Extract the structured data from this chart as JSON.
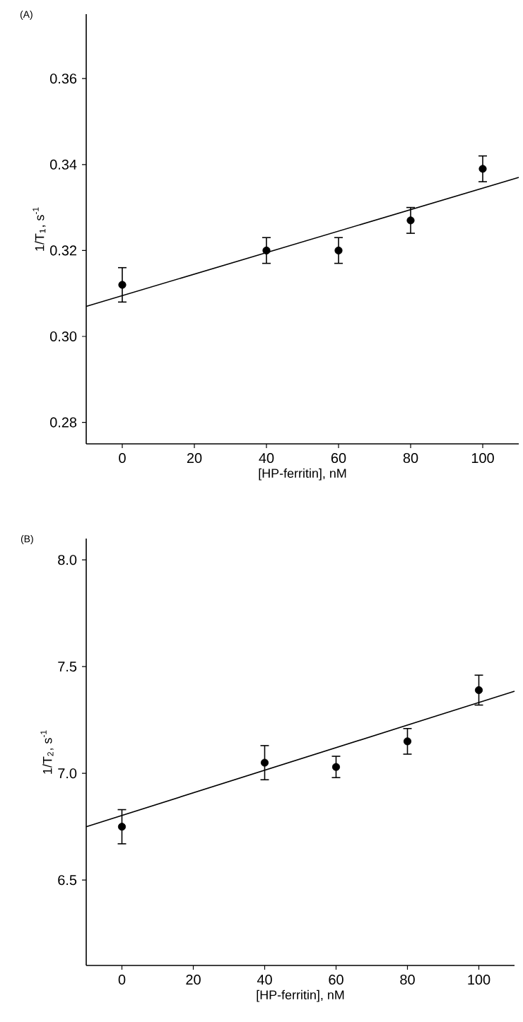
{
  "chart_data": [
    {
      "type": "scatter",
      "title": "(A)",
      "xlabel": "[HP-ferritin], nM",
      "ylabel": "1/T$_{1}$, s$^{-1}$",
      "xlim": [
        -10,
        110
      ],
      "ylim": [
        0.275,
        0.375
      ],
      "xticks": [
        0,
        20,
        40,
        60,
        80,
        100
      ],
      "yticks": [
        0.28,
        {
          "value": 0.3,
          "label": "0.30"
        },
        0.32,
        0.34,
        0.36
      ],
      "grid": false,
      "series": [
        {
          "color": "#000000",
          "marker": "circle",
          "x": [
            0,
            40,
            60,
            80,
            100
          ],
          "values": [
            0.312,
            0.32,
            0.32,
            0.327,
            0.339
          ],
          "errors": [
            0.004,
            0.003,
            0.003,
            0.003,
            0.003
          ]
        },
        {
          "type": "line",
          "color": "#000000",
          "marker": "none",
          "line_style": "solid",
          "x": [
            -10,
            110
          ],
          "values": [
            0.307,
            0.337
          ]
        }
      ]
    },
    {
      "type": "scatter",
      "title": "(B)",
      "xlabel": "[HP-ferritin], nM",
      "ylabel": "1/T$_{2}$, s$^{-1}$",
      "xlim": [
        -10,
        110
      ],
      "ylim": [
        6.1,
        8.1
      ],
      "xticks": [
        0,
        20,
        40,
        60,
        80,
        100
      ],
      "yticks": [
        6.5,
        {
          "value": 7,
          "label": "7.0"
        },
        7.5,
        {
          "value": 8,
          "label": "8.0"
        }
      ],
      "grid": false,
      "series": [
        {
          "color": "#000000",
          "marker": "circle",
          "x": [
            0,
            40,
            60,
            80,
            100
          ],
          "values": [
            6.75,
            7.05,
            7.03,
            7.15,
            7.39
          ],
          "errors": [
            0.08,
            0.08,
            0.05,
            0.06,
            0.07
          ]
        },
        {
          "type": "line",
          "color": "#000000",
          "marker": "none",
          "line_style": "solid",
          "x": [
            -10,
            110
          ],
          "values": [
            6.75,
            7.385
          ]
        }
      ]
    }
  ]
}
